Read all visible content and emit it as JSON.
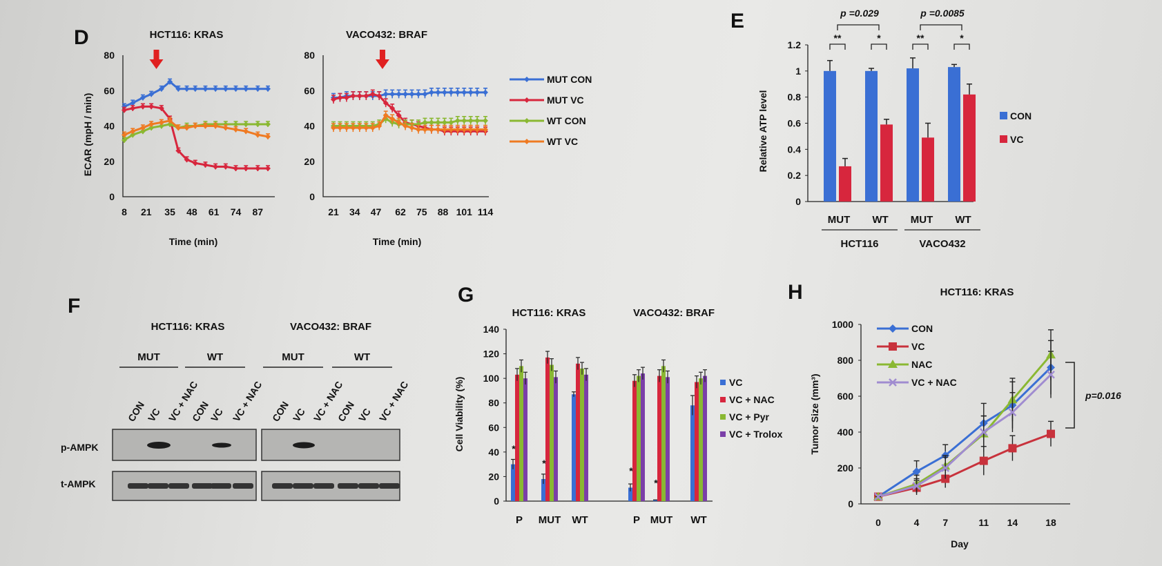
{
  "colors": {
    "blue": "#3a6fd4",
    "red": "#d7263d",
    "green": "#8ab832",
    "orange": "#ef7a22",
    "purple": "#7b3fa8",
    "lav": "#a08cd0",
    "darkred": "#c8323c"
  },
  "chart_data": [
    {
      "panel": "D",
      "type": "line",
      "title": "HCT116: KRAS",
      "xlabel": "Time (min)",
      "ylabel": "ECAR (mpH / min)",
      "ylim": [
        0,
        80
      ],
      "yticks": [
        "0",
        "20",
        "40",
        "60",
        "80"
      ],
      "xticks": [
        "8",
        "21",
        "35",
        "48",
        "61",
        "74",
        "87"
      ],
      "x": [
        8,
        13,
        19,
        24,
        30,
        35,
        40,
        45,
        50,
        56,
        62,
        68,
        74,
        80,
        87,
        93
      ],
      "arrow_at": 27,
      "series": [
        {
          "name": "MUT CON",
          "color": "blue",
          "values": [
            51,
            53,
            56,
            58,
            61,
            65,
            61,
            61,
            61,
            61,
            61,
            61,
            61,
            61,
            61,
            61
          ]
        },
        {
          "name": "MUT VC",
          "color": "red",
          "values": [
            49,
            50,
            51,
            51,
            50,
            44,
            26,
            21,
            19,
            18,
            17,
            17,
            16,
            16,
            16,
            16
          ]
        },
        {
          "name": "WT CON",
          "color": "green",
          "values": [
            32,
            35,
            37,
            39,
            40,
            41,
            39,
            40,
            40,
            41,
            41,
            41,
            41,
            41,
            41,
            41
          ]
        },
        {
          "name": "WT VC",
          "color": "orange",
          "values": [
            35,
            37,
            39,
            41,
            42,
            43,
            39,
            39,
            40,
            40,
            40,
            39,
            38,
            37,
            35,
            34
          ]
        }
      ]
    },
    {
      "panel": "D",
      "type": "line",
      "title": "VACO432: BRAF",
      "xlabel": "Time (min)",
      "ylabel": "",
      "ylim": [
        0,
        80
      ],
      "yticks": [
        "0",
        "20",
        "40",
        "60",
        "80"
      ],
      "xticks": [
        "21",
        "34",
        "47",
        "62",
        "75",
        "88",
        "101",
        "114"
      ],
      "x": [
        21,
        25,
        29,
        33,
        37,
        41,
        45,
        49,
        53,
        57,
        61,
        65,
        69,
        73,
        77,
        81,
        85,
        89,
        93,
        97,
        101,
        105,
        109,
        114
      ],
      "arrow_at": 51,
      "series": [
        {
          "name": "MUT CON",
          "color": "blue",
          "values": [
            56,
            56,
            57,
            57,
            57,
            57,
            57,
            57,
            58,
            58,
            58,
            58,
            58,
            58,
            58,
            59,
            59,
            59,
            59,
            59,
            59,
            59,
            59,
            59
          ]
        },
        {
          "name": "MUT VC",
          "color": "red",
          "values": [
            55,
            56,
            56,
            57,
            57,
            57,
            58,
            57,
            53,
            50,
            46,
            42,
            41,
            40,
            39,
            38,
            38,
            37,
            37,
            37,
            37,
            37,
            37,
            37
          ]
        },
        {
          "name": "WT CON",
          "color": "green",
          "values": [
            40,
            40,
            40,
            40,
            40,
            40,
            40,
            41,
            44,
            42,
            41,
            41,
            41,
            41,
            42,
            42,
            42,
            42,
            42,
            43,
            43,
            43,
            43,
            43
          ]
        },
        {
          "name": "WT VC",
          "color": "orange",
          "values": [
            39,
            39,
            39,
            39,
            39,
            39,
            39,
            40,
            46,
            44,
            42,
            40,
            39,
            38,
            38,
            38,
            38,
            38,
            38,
            38,
            38,
            38,
            38,
            38
          ]
        }
      ],
      "legend": [
        "MUT CON",
        "MUT VC",
        "WT CON",
        "WT VC"
      ]
    },
    {
      "panel": "E",
      "type": "bar",
      "ylabel": "Relative ATP level",
      "ylim": [
        0,
        1.2
      ],
      "yticks": [
        "0",
        "0.2",
        "0.4",
        "0.6",
        "0.8",
        "1",
        "1.2"
      ],
      "categories": [
        "MUT",
        "WT",
        "MUT",
        "WT"
      ],
      "groups": [
        "HCT116",
        "VACO432"
      ],
      "series": [
        {
          "name": "CON",
          "color": "blue",
          "values": [
            1.0,
            1.0,
            1.02,
            1.03
          ]
        },
        {
          "name": "VC",
          "color": "red",
          "values": [
            0.27,
            0.59,
            0.49,
            0.82
          ]
        }
      ],
      "stars": [
        "**",
        "*",
        "**",
        "*"
      ],
      "pvalues": [
        "p =0.029",
        "p =0.0085"
      ]
    },
    {
      "panel": "G",
      "type": "bar",
      "ylabel": "Cell Viability (%)",
      "titles": [
        "HCT116: KRAS",
        "VACO432: BRAF"
      ],
      "ylim": [
        0,
        140
      ],
      "yticks": [
        "0",
        "20",
        "40",
        "60",
        "80",
        "100",
        "120",
        "140"
      ],
      "categories": [
        "P",
        "MUT",
        "WT",
        "P",
        "MUT",
        "WT"
      ],
      "series": [
        {
          "name": "VC",
          "color": "blue",
          "values": [
            30,
            18,
            87,
            11,
            1,
            78
          ]
        },
        {
          "name": "VC + NAC",
          "color": "red",
          "values": [
            103,
            117,
            112,
            98,
            102,
            97
          ]
        },
        {
          "name": "VC + Pyr",
          "color": "green",
          "values": [
            110,
            111,
            108,
            102,
            110,
            100
          ]
        },
        {
          "name": "VC + Trolox",
          "color": "purple",
          "values": [
            100,
            101,
            103,
            104,
            101,
            102
          ]
        }
      ],
      "star_categories": [
        "P",
        "MUT",
        "P",
        "MUT"
      ]
    },
    {
      "panel": "H",
      "type": "line",
      "title": "HCT116: KRAS",
      "xlabel": "Day",
      "ylabel": "Tumor Size (mm³)",
      "ylim": [
        0,
        1000
      ],
      "yticks": [
        "0",
        "200",
        "400",
        "600",
        "800",
        "1000"
      ],
      "x": [
        0,
        4,
        7,
        11,
        14,
        18
      ],
      "xticks": [
        "0",
        "4",
        "7",
        "11",
        "14",
        "18"
      ],
      "series": [
        {
          "name": "CON",
          "color": "blue",
          "values": [
            40,
            180,
            270,
            450,
            550,
            760
          ]
        },
        {
          "name": "VC",
          "color": "darkred",
          "values": [
            40,
            90,
            140,
            240,
            310,
            390
          ]
        },
        {
          "name": "NAC",
          "color": "green",
          "values": [
            40,
            110,
            210,
            390,
            580,
            830
          ]
        },
        {
          "name": "VC + NAC",
          "color": "lav",
          "values": [
            40,
            100,
            200,
            400,
            510,
            720
          ]
        }
      ],
      "pvalue": "p=0.016"
    }
  ],
  "blot": {
    "panel": "F",
    "titles": [
      "HCT116: KRAS",
      "VACO432: BRAF"
    ],
    "groups": [
      "MUT",
      "WT",
      "MUT",
      "WT"
    ],
    "lanes": [
      "CON",
      "VC",
      "VC + NAC",
      "CON",
      "VC",
      "VC + NAC",
      "CON",
      "VC",
      "VC + NAC",
      "CON",
      "VC",
      "VC + NAC"
    ],
    "rows": [
      "p-AMPK",
      "t-AMPK"
    ]
  },
  "panel_letters": {
    "D": "D",
    "E": "E",
    "F": "F",
    "G": "G",
    "H": "H"
  }
}
